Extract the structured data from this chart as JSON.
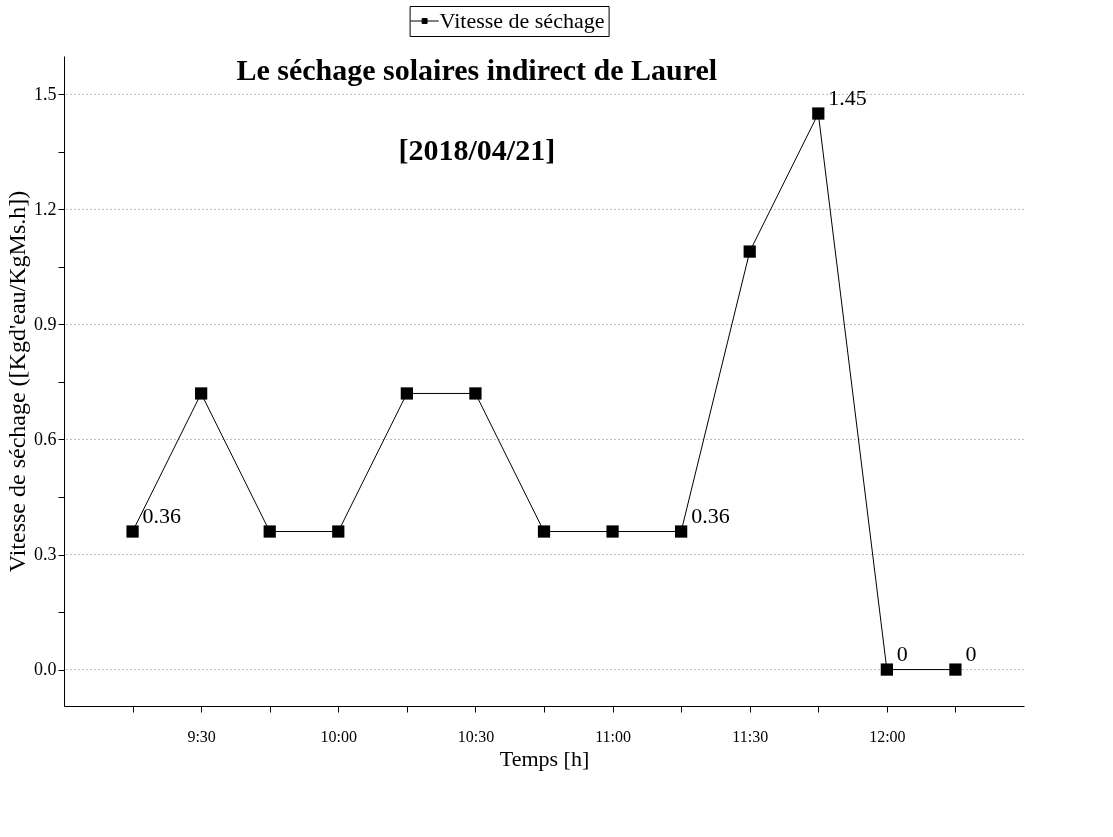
{
  "chart_data": {
    "type": "line",
    "title": "Le séchage solaires indirect de Laurel",
    "subtitle": "[2018/04/21]",
    "xlabel": "Temps [h]",
    "ylabel": "Vitesse de séchage ([Kgd'eau/KgMs.h])",
    "x": [
      9.25,
      9.5,
      9.75,
      10.0,
      10.25,
      10.5,
      10.75,
      11.0,
      11.25,
      11.5,
      11.75,
      12.0,
      12.25
    ],
    "series": [
      {
        "name": "Vitesse de séchage",
        "color": "#000000",
        "values": [
          0.36,
          0.72,
          0.36,
          0.36,
          0.72,
          0.72,
          0.36,
          0.36,
          0.36,
          1.09,
          1.45,
          0,
          0
        ],
        "value_labels": [
          "0.36",
          null,
          null,
          null,
          null,
          null,
          null,
          null,
          "0.36",
          null,
          "1.45",
          "0",
          "0"
        ]
      }
    ],
    "xlim": [
      9.0,
      12.5
    ],
    "xticks": [
      {
        "value": 9.25,
        "label": null
      },
      {
        "value": 9.5,
        "label": "9:30"
      },
      {
        "value": 9.75,
        "label": null
      },
      {
        "value": 10.0,
        "label": "10:00"
      },
      {
        "value": 10.25,
        "label": null
      },
      {
        "value": 10.5,
        "label": "10:30"
      },
      {
        "value": 10.75,
        "label": null
      },
      {
        "value": 11.0,
        "label": "11:00"
      },
      {
        "value": 11.25,
        "label": null
      },
      {
        "value": 11.5,
        "label": "11:30"
      },
      {
        "value": 11.75,
        "label": null
      },
      {
        "value": 12.0,
        "label": "12:00"
      },
      {
        "value": 12.25,
        "label": null
      }
    ],
    "ylim": [
      -0.095,
      1.6
    ],
    "yticks": [
      {
        "value": 0.0,
        "label": "0.0"
      },
      {
        "value": 0.15,
        "label": null
      },
      {
        "value": 0.3,
        "label": "0.3"
      },
      {
        "value": 0.45,
        "label": null
      },
      {
        "value": 0.6,
        "label": "0.6"
      },
      {
        "value": 0.75,
        "label": null
      },
      {
        "value": 0.9,
        "label": "0.9"
      },
      {
        "value": 1.05,
        "label": null
      },
      {
        "value": 1.2,
        "label": "1.2"
      },
      {
        "value": 1.35,
        "label": null
      },
      {
        "value": 1.5,
        "label": "1.5"
      }
    ],
    "grid": "y",
    "legend": "top",
    "marker": "square",
    "line_style": "solid"
  }
}
